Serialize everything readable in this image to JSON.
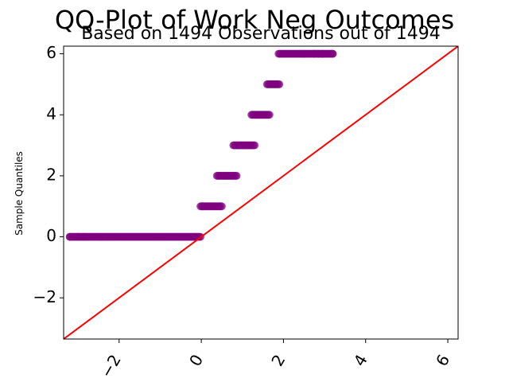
{
  "chart_data": {
    "type": "scatter",
    "title": "QQ-Plot of Work Neg Outcomes",
    "subtitle": "Based on 1494 Observations out of 1494",
    "xlabel": "",
    "ylabel": "Sample Quantiles",
    "xlim": [
      -3.35,
      6.25
    ],
    "ylim": [
      -3.35,
      6.25
    ],
    "x_ticks": [
      -2,
      0,
      2,
      4,
      6
    ],
    "y_ticks": [
      -2,
      0,
      2,
      4,
      6
    ],
    "x_tick_labels": [
      "−2",
      "0",
      "2",
      "4",
      "6"
    ],
    "y_tick_labels": [
      "−2",
      "0",
      "2",
      "4",
      "6"
    ],
    "grid": false,
    "reference_line": {
      "slope": 1,
      "intercept": 0,
      "color": "#ff0000"
    },
    "marker_color": "#800080",
    "series": [
      {
        "bands": [
          {
            "y": 0,
            "x_start": -3.2,
            "x_end": -0.02
          },
          {
            "y": 1,
            "x_start": -0.02,
            "x_end": 0.5
          },
          {
            "y": 2,
            "x_start": 0.38,
            "x_end": 0.86
          },
          {
            "y": 3,
            "x_start": 0.78,
            "x_end": 1.3
          },
          {
            "y": 4,
            "x_start": 1.22,
            "x_end": 1.66
          },
          {
            "y": 5,
            "x_start": 1.6,
            "x_end": 1.9
          },
          {
            "y": 6,
            "x_start": 1.88,
            "x_end": 3.2
          }
        ],
        "outlier_points": [
          {
            "x": -3.2,
            "y": 0
          },
          {
            "x": -3.0,
            "y": 0
          },
          {
            "x": -2.85,
            "y": 0
          },
          {
            "x": 2.75,
            "y": 6
          },
          {
            "x": 2.85,
            "y": 6
          },
          {
            "x": 2.95,
            "y": 6
          },
          {
            "x": 3.2,
            "y": 6
          }
        ]
      }
    ]
  }
}
